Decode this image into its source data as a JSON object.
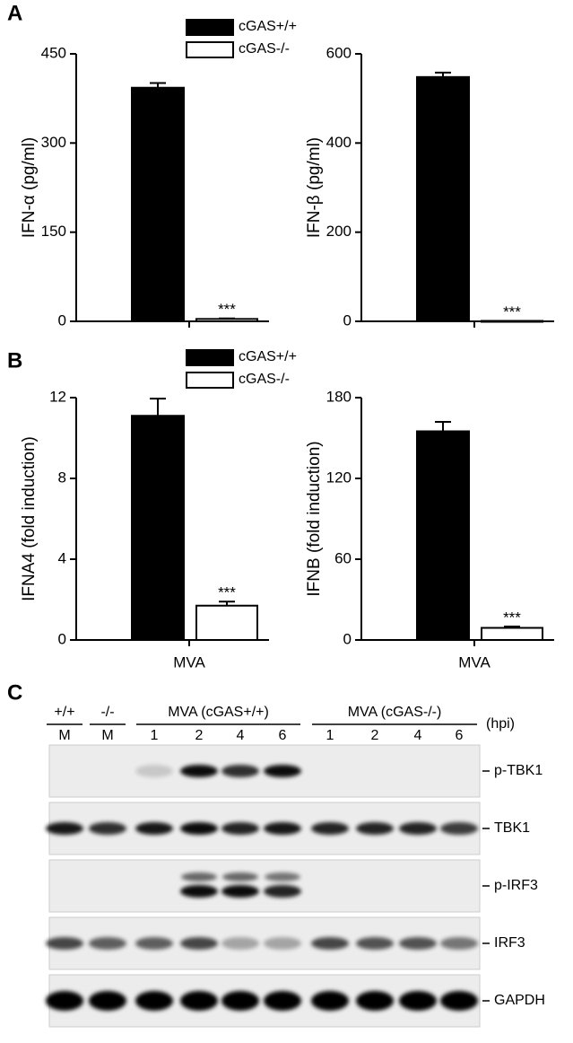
{
  "panel_labels": [
    "A",
    "B",
    "C"
  ],
  "chart_data": [
    {
      "type": "bar",
      "y_label": "IFN-α (pg/ml)",
      "categories": [
        null
      ],
      "legend": "top",
      "series": [
        {
          "name": "cGAS+/+",
          "color": "#000000",
          "values": [
            393
          ],
          "errors": [
            8
          ]
        },
        {
          "name": "cGAS-/-",
          "color": "#ffffff",
          "values": [
            4
          ],
          "errors": [
            1
          ]
        }
      ],
      "annotations": [
        "***"
      ],
      "ylim": [
        0,
        450
      ],
      "yticks": [
        0,
        150,
        300,
        450
      ]
    },
    {
      "type": "bar",
      "y_label": "IFN-β (pg/ml)",
      "categories": [
        null
      ],
      "series": [
        {
          "color": "#000000",
          "values": [
            548
          ],
          "errors": [
            10
          ]
        },
        {
          "color": "#ffffff",
          "values": [
            1
          ],
          "errors": [
            0
          ]
        }
      ],
      "annotations": [
        "***"
      ],
      "ylim": [
        0,
        600
      ],
      "yticks": [
        0,
        200,
        400,
        600
      ]
    },
    {
      "type": "bar",
      "y_label": "IFNA4  (fold induction)",
      "categories": [
        "MVA"
      ],
      "legend": "top",
      "series": [
        {
          "name": "cGAS+/+",
          "color": "#000000",
          "values": [
            11.1
          ],
          "errors": [
            0.85
          ]
        },
        {
          "name": "cGAS-/-",
          "color": "#ffffff",
          "values": [
            1.7
          ],
          "errors": [
            0.2
          ]
        }
      ],
      "annotations": [
        "***"
      ],
      "ylim": [
        0,
        12
      ],
      "yticks": [
        0,
        4,
        8,
        12
      ]
    },
    {
      "type": "bar",
      "y_label": "IFNB (fold induction)",
      "categories": [
        "MVA"
      ],
      "series": [
        {
          "color": "#000000",
          "values": [
            155
          ],
          "errors": [
            7
          ]
        },
        {
          "color": "#ffffff",
          "values": [
            9
          ],
          "errors": [
            1
          ]
        }
      ],
      "annotations": [
        "***"
      ],
      "ylim": [
        0,
        180
      ],
      "yticks": [
        0,
        60,
        120,
        180
      ]
    }
  ],
  "blot": {
    "groups": [
      "+/+",
      "-/-",
      "MVA (cGAS+/+)",
      "MVA (cGAS-/-)"
    ],
    "lanes": [
      "M",
      "M",
      "1",
      "2",
      "4",
      "6",
      "1",
      "2",
      "4",
      "6"
    ],
    "unit": "(hpi)",
    "rows": [
      "p-TBK1",
      "TBK1",
      "p-IRF3",
      "IRF3",
      "GAPDH"
    ]
  }
}
